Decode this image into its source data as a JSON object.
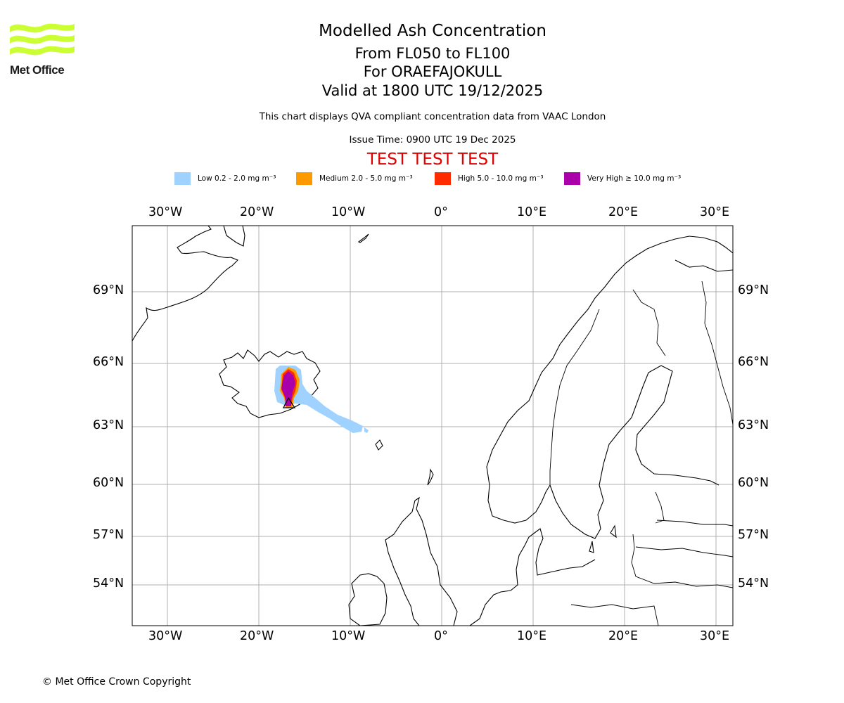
{
  "header": {
    "title": "Modelled Ash Concentration",
    "levels": "From FL050 to FL100",
    "volcano": "For ORAEFAJOKULL",
    "valid": "Valid at 1800 UTC 19/12/2025",
    "description": "This chart displays QVA compliant concentration data from VAAC London",
    "issue_time": "Issue Time: 0900 UTC 19 Dec 2025",
    "test_banner": "TEST TEST TEST"
  },
  "logo": {
    "text": "Met Office",
    "color": "#ccff33"
  },
  "legend": [
    {
      "label": "Low 0.2 - 2.0 mg m⁻³",
      "color": "#a0d2ff"
    },
    {
      "label": "Medium 2.0 - 5.0 mg m⁻³",
      "color": "#ff9900"
    },
    {
      "label": "High 5.0 - 10.0 mg m⁻³",
      "color": "#ff2a00"
    },
    {
      "label": "Very High  ≥  10.0 mg m⁻³",
      "color": "#aa00aa"
    }
  ],
  "map": {
    "lon_ticks": [
      "30°W",
      "20°W",
      "10°W",
      "0°",
      "10°E",
      "20°E",
      "30°E"
    ],
    "lat_ticks": [
      "69°N",
      "66°N",
      "63°N",
      "60°N",
      "57°N",
      "54°N"
    ]
  },
  "footer": {
    "copyright": "© Met Office Crown Copyright"
  }
}
